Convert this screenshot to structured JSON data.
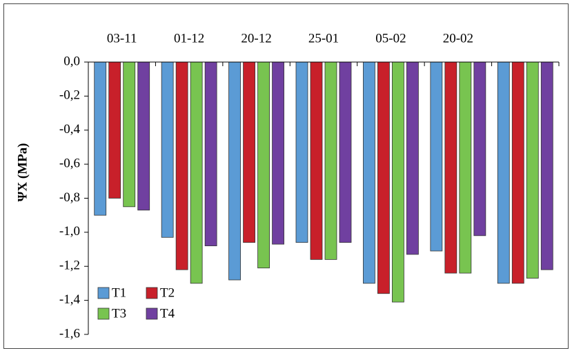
{
  "chart_data": {
    "type": "bar",
    "y_label": "ΨX (MPa)",
    "categories": [
      "03-11",
      "01-12",
      "20-12",
      "25-01",
      "05-02",
      "20-02",
      null
    ],
    "series": [
      {
        "name": "T1",
        "color": "#5b9bd5",
        "values": [
          -0.9,
          -1.03,
          -1.28,
          -1.06,
          -1.3,
          -1.11,
          -1.3
        ]
      },
      {
        "name": "T2",
        "color": "#c8202a",
        "values": [
          -0.8,
          -1.22,
          -1.06,
          -1.16,
          -1.36,
          -1.24,
          -1.3
        ]
      },
      {
        "name": "T3",
        "color": "#78c450",
        "values": [
          -0.85,
          -1.3,
          -1.21,
          -1.16,
          -1.41,
          -1.24,
          -1.27
        ]
      },
      {
        "name": "T4",
        "color": "#7040a0",
        "values": [
          -0.87,
          -1.08,
          -1.07,
          -1.06,
          -1.13,
          -1.02,
          -1.22
        ]
      }
    ],
    "ylim": [
      0,
      -1.6
    ],
    "yticks": [
      {
        "value": 0,
        "label": "0,0"
      },
      {
        "value": -0.2,
        "label": "-0,2"
      },
      {
        "value": -0.4,
        "label": "-0,4"
      },
      {
        "value": -0.6,
        "label": "-0,6"
      },
      {
        "value": -0.8,
        "label": "-0,8"
      },
      {
        "value": -1.0,
        "label": "-1,0"
      },
      {
        "value": -1.2,
        "label": "-1,2"
      },
      {
        "value": -1.4,
        "label": "-1,4"
      },
      {
        "value": -1.6,
        "label": "-1,6"
      }
    ],
    "legend": "bottom-left"
  }
}
